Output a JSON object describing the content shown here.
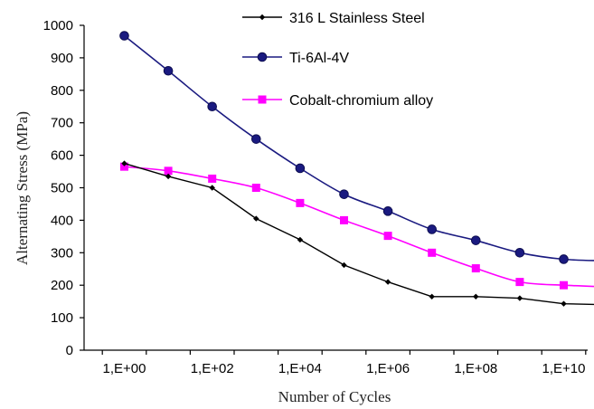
{
  "chart_data": {
    "type": "line",
    "title": "",
    "xlabel": "Number of Cycles",
    "ylabel": "Alternating Stress (MPa)",
    "x_scale": "log10",
    "x_tick_labels": [
      "1,E+00",
      "1,E+02",
      "1,E+04",
      "1,E+06",
      "1,E+08",
      "1,E+10"
    ],
    "x_tick_values": [
      1,
      100,
      10000,
      1000000,
      100000000,
      10000000000
    ],
    "y_tick_labels": [
      "0",
      "100",
      "200",
      "300",
      "400",
      "500",
      "600",
      "700",
      "800",
      "900",
      "1000"
    ],
    "ylim": [
      0,
      1000
    ],
    "grid": false,
    "legend_position": "top-right",
    "x": [
      1,
      10,
      100,
      1000,
      10000,
      100000,
      1000000,
      10000000,
      100000000,
      1000000000,
      10000000000,
      100000000000
    ],
    "series": [
      {
        "name": "316 L Stainless Steel",
        "color": "#000000",
        "marker": "diamond",
        "values": [
          575,
          535,
          500,
          405,
          340,
          262,
          210,
          165,
          165,
          160,
          143,
          140
        ]
      },
      {
        "name": "Ti-6Al-4V",
        "color": "#1a1a80",
        "marker": "circle",
        "values": [
          968,
          860,
          750,
          650,
          560,
          480,
          428,
          372,
          338,
          300,
          280,
          275
        ]
      },
      {
        "name": "Cobalt-chromium alloy",
        "color": "#ff00ff",
        "marker": "square",
        "values": [
          565,
          552,
          528,
          500,
          453,
          400,
          352,
          300,
          252,
          210,
          200,
          195
        ]
      }
    ]
  }
}
